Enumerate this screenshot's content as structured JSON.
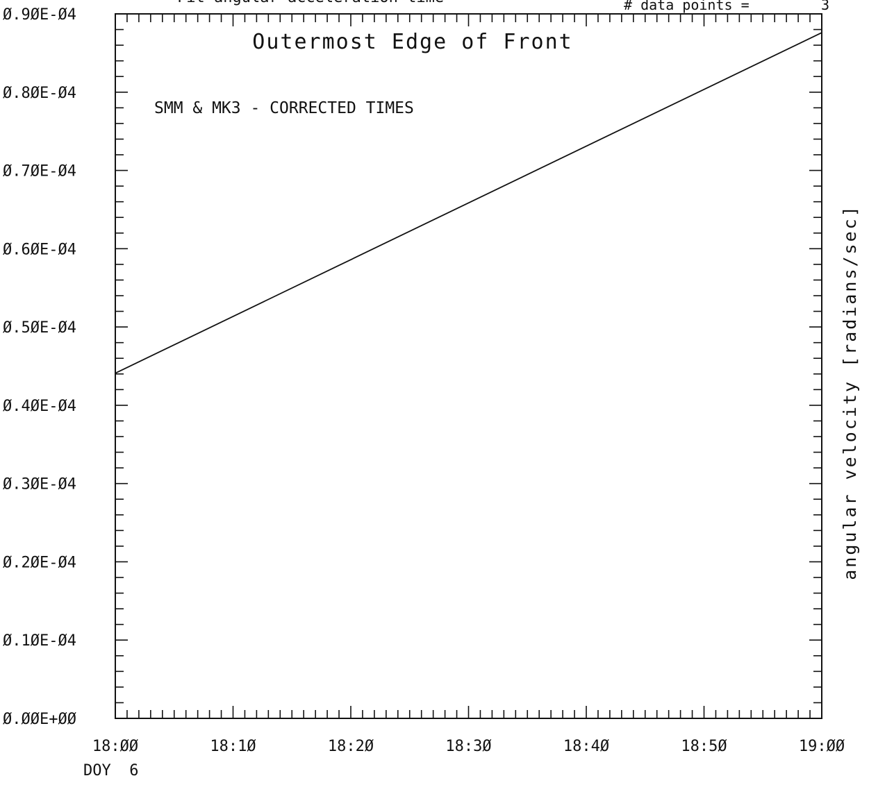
{
  "header": {
    "top_left_partial": "Fit angular acceleration time",
    "top_right_label": "# data points =",
    "top_right_value": "3"
  },
  "footer": {
    "doy_label": "DOY  6"
  },
  "chart_data": {
    "type": "line",
    "title": "Outermost Edge of Front",
    "subtitle": "SMM & MK3 - CORRECTED TIMES",
    "xlabel": "",
    "ylabel": "angular velocity [radians/sec]",
    "ylabel_position": "right",
    "xlim": [
      "18:00",
      "19:00"
    ],
    "ylim": [
      0,
      9e-05
    ],
    "grid": false,
    "x_tick_labels": [
      "18:ØØ",
      "18:1Ø",
      "18:2Ø",
      "18:3Ø",
      "18:4Ø",
      "18:5Ø",
      "19:ØØ"
    ],
    "y_tick_labels": [
      "Ø.ØØE+ØØ",
      "Ø.1ØE-Ø4",
      "Ø.2ØE-Ø4",
      "Ø.3ØE-Ø4",
      "Ø.4ØE-Ø4",
      "Ø.5ØE-Ø4",
      "Ø.6ØE-Ø4",
      "Ø.7ØE-Ø4",
      "Ø.8ØE-Ø4",
      "Ø.9ØE-Ø4"
    ],
    "series": [
      {
        "x": [
          "18:00",
          "19:00"
        ],
        "y": [
          4.41e-05,
          8.76e-05
        ]
      }
    ]
  }
}
